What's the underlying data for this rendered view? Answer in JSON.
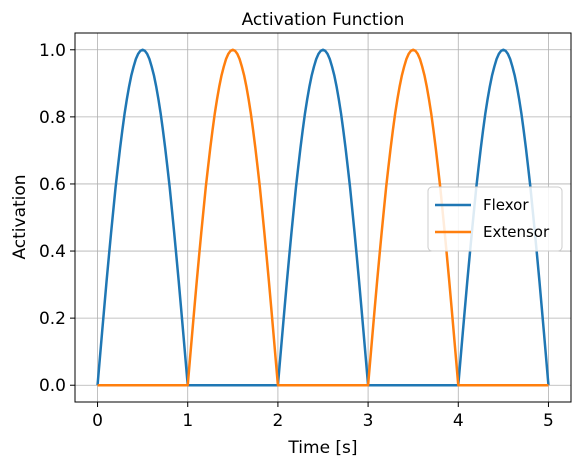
{
  "chart_data": {
    "type": "line",
    "title": "Activation Function",
    "xlabel": "Time [s]",
    "ylabel": "Activation",
    "xlim": [
      -0.25,
      5.25
    ],
    "ylim": [
      -0.05,
      1.05
    ],
    "xticks": [
      0,
      1,
      2,
      3,
      4,
      5
    ],
    "xtick_labels": [
      "0",
      "1",
      "2",
      "3",
      "4",
      "5"
    ],
    "yticks": [
      0.0,
      0.2,
      0.4,
      0.6,
      0.8,
      1.0
    ],
    "ytick_labels": [
      "0.0",
      "0.2",
      "0.4",
      "0.6",
      "0.8",
      "1.0"
    ],
    "grid": true,
    "legend_position": "center-right",
    "series": [
      {
        "name": "Flexor",
        "color": "#1f77b4",
        "x": [
          0,
          0.1,
          0.2,
          0.3,
          0.4,
          0.5,
          0.6,
          0.7,
          0.8,
          0.9,
          1.0,
          1.5,
          2.0,
          2.1,
          2.2,
          2.3,
          2.4,
          2.5,
          2.6,
          2.7,
          2.8,
          2.9,
          3.0,
          3.5,
          4.0,
          4.1,
          4.2,
          4.3,
          4.4,
          4.5,
          4.6,
          4.7,
          4.8,
          4.9,
          5.0
        ],
        "y": [
          0,
          0.31,
          0.59,
          0.81,
          0.95,
          1.0,
          0.95,
          0.81,
          0.59,
          0.31,
          0,
          0,
          0,
          0.31,
          0.59,
          0.81,
          0.95,
          1.0,
          0.95,
          0.81,
          0.59,
          0.31,
          0,
          0,
          0,
          0.31,
          0.59,
          0.81,
          0.95,
          1.0,
          0.95,
          0.81,
          0.59,
          0.31,
          0
        ]
      },
      {
        "name": "Extensor",
        "color": "#ff7f0e",
        "x": [
          0,
          0.5,
          1.0,
          1.1,
          1.2,
          1.3,
          1.4,
          1.5,
          1.6,
          1.7,
          1.8,
          1.9,
          2.0,
          2.5,
          3.0,
          3.1,
          3.2,
          3.3,
          3.4,
          3.5,
          3.6,
          3.7,
          3.8,
          3.9,
          4.0,
          4.5,
          5.0
        ],
        "y": [
          0,
          0,
          0,
          0.31,
          0.59,
          0.81,
          0.95,
          1.0,
          0.95,
          0.81,
          0.59,
          0.31,
          0,
          0,
          0,
          0.31,
          0.59,
          0.81,
          0.95,
          1.0,
          0.95,
          0.81,
          0.59,
          0.31,
          0,
          0,
          0
        ]
      }
    ]
  }
}
